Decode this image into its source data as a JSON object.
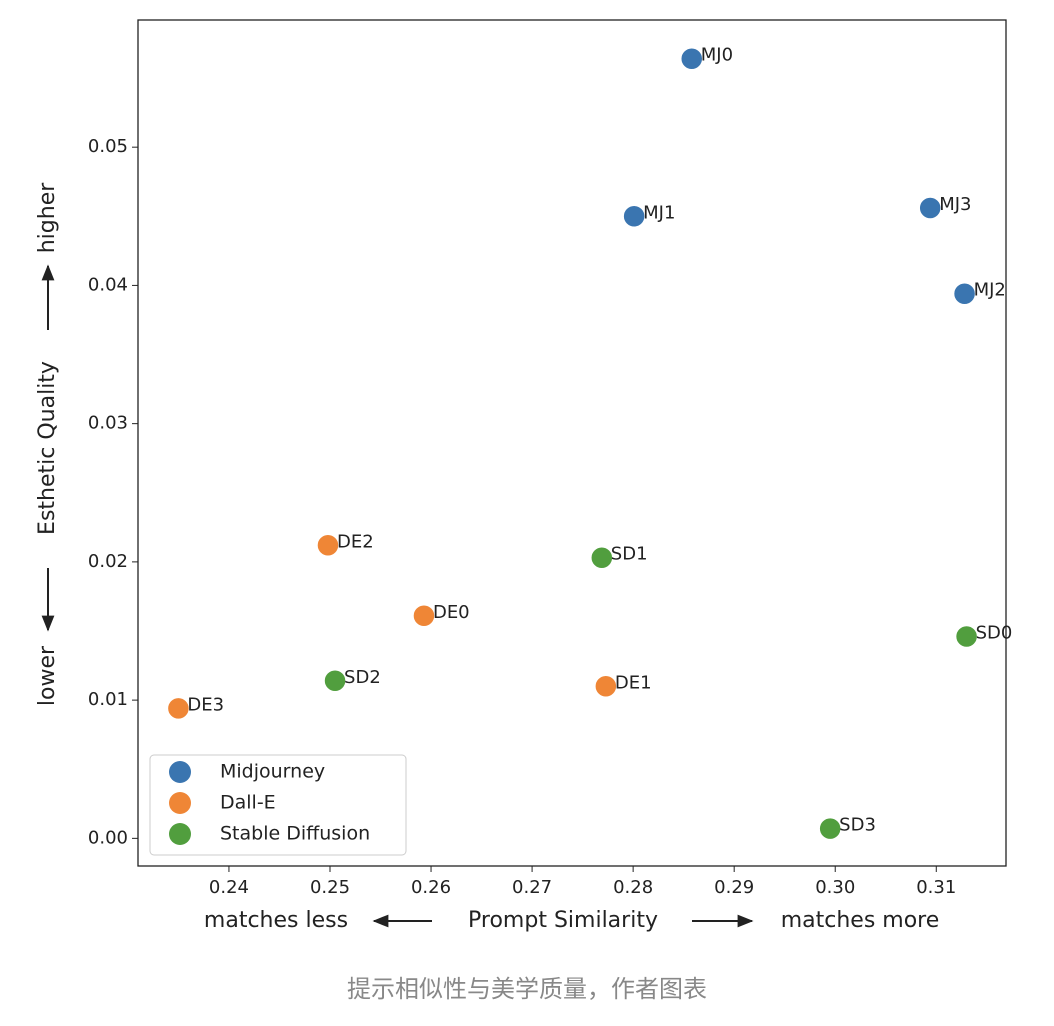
{
  "chart_data": {
    "type": "scatter",
    "x_label_left": "matches less",
    "x_label": "Prompt Similarity",
    "x_label_right": "matches more",
    "y_label_bottom": "lower",
    "y_label": "Esthetic Quality",
    "y_label_top": "higher",
    "caption": "提示相似性与美学质量，作者图表",
    "xlim": [
      0.231,
      0.3169
    ],
    "xticks": [
      0.24,
      0.25,
      0.26,
      0.27,
      0.28,
      0.29,
      {
        "value": 0.3,
        "label": "0.30"
      },
      0.31
    ],
    "ylim": [
      -0.002,
      0.0592
    ],
    "yticks": [
      {
        "value": 0,
        "label": "0.00"
      },
      0.01,
      0.02,
      0.03,
      0.04,
      0.05
    ],
    "legend": "lower left",
    "series": [
      {
        "name": "Midjourney",
        "color": "#3a75b0",
        "labels": [
          "MJ0",
          "MJ1",
          "MJ2",
          "MJ3"
        ],
        "x": [
          0.2858,
          0.2801,
          0.3128,
          0.3094
        ],
        "y": [
          0.0564,
          0.045,
          0.0394,
          0.0456
        ]
      },
      {
        "name": "Dall-E",
        "color": "#ef8636",
        "labels": [
          "DE0",
          "DE1",
          "DE2",
          "DE3"
        ],
        "x": [
          0.2593,
          0.2773,
          0.2498,
          0.235
        ],
        "y": [
          0.0161,
          0.011,
          0.0212,
          0.0094
        ]
      },
      {
        "name": "Stable Diffusion",
        "color": "#519e3e",
        "labels": [
          "SD0",
          "SD1",
          "SD2",
          "SD3"
        ],
        "x": [
          0.313,
          0.2769,
          0.2505,
          0.2995
        ],
        "y": [
          0.0146,
          0.0203,
          0.0114,
          0.0007
        ]
      }
    ]
  }
}
